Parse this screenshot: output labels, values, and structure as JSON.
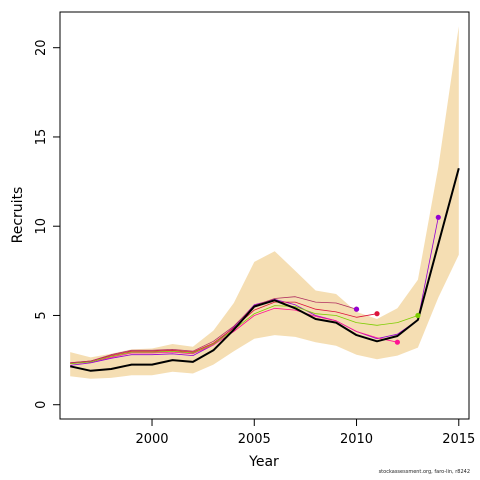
{
  "chart_data": {
    "type": "line",
    "xlabel": "Year",
    "ylabel": "Recruits",
    "xlim": [
      1995.5,
      2015.5
    ],
    "ylim": [
      -0.8,
      22
    ],
    "x_ticks": [
      2000,
      2005,
      2010,
      2015
    ],
    "y_ticks": [
      0,
      5,
      10,
      15,
      20
    ],
    "grid": false,
    "band": {
      "color": "#F5DEB3",
      "x": [
        1996,
        1997,
        1998,
        1999,
        2000,
        2001,
        2002,
        2003,
        2004,
        2005,
        2006,
        2007,
        2008,
        2009,
        2010,
        2011,
        2012,
        2013,
        2014,
        2015
      ],
      "lower": [
        1.6,
        1.45,
        1.5,
        1.65,
        1.65,
        1.85,
        1.75,
        2.25,
        3.0,
        3.7,
        3.9,
        3.8,
        3.5,
        3.3,
        2.8,
        2.55,
        2.75,
        3.2,
        6.0,
        8.4
      ],
      "upper": [
        2.95,
        2.65,
        2.85,
        3.1,
        3.15,
        3.4,
        3.25,
        4.15,
        5.7,
        8.0,
        8.6,
        7.5,
        6.4,
        6.2,
        5.2,
        4.8,
        5.4,
        7.0,
        13.3,
        21.2
      ]
    },
    "series": [
      {
        "color": "#000000",
        "width": 2,
        "x": [
          1996,
          1997,
          1998,
          1999,
          2000,
          2001,
          2002,
          2003,
          2004,
          2005,
          2006,
          2007,
          2008,
          2009,
          2010,
          2011,
          2012,
          2013,
          2014,
          2015
        ],
        "values": [
          2.15,
          1.9,
          2.0,
          2.25,
          2.25,
          2.5,
          2.4,
          3.05,
          4.2,
          5.5,
          5.85,
          5.4,
          4.8,
          4.6,
          3.9,
          3.55,
          3.85,
          4.75,
          9.0,
          13.25
        ]
      },
      {
        "color": "#9400D3",
        "width": 0.8,
        "endpoint": true,
        "x": [
          1996,
          1997,
          1998,
          1999,
          2000,
          2001,
          2002,
          2003,
          2004,
          2005,
          2006,
          2007,
          2008,
          2009,
          2010,
          2011,
          2012,
          2013,
          2014
        ],
        "values": [
          2.2,
          2.35,
          2.6,
          2.8,
          2.8,
          2.85,
          2.75,
          3.35,
          4.35,
          5.6,
          5.9,
          5.6,
          5.0,
          4.7,
          4.1,
          3.7,
          3.95,
          4.75,
          10.5
        ]
      },
      {
        "color": "#FF1493",
        "width": 0.8,
        "endpoint": true,
        "x": [
          1996,
          1997,
          1998,
          1999,
          2000,
          2001,
          2002,
          2003,
          2004,
          2005,
          2006,
          2007,
          2008,
          2009,
          2010,
          2011,
          2012
        ],
        "values": [
          2.3,
          2.4,
          2.65,
          2.9,
          2.9,
          2.95,
          2.85,
          3.35,
          4.1,
          5.0,
          5.4,
          5.3,
          4.95,
          4.7,
          4.1,
          3.75,
          3.5
        ]
      },
      {
        "color": "#7CCD00",
        "width": 0.8,
        "endpoint": true,
        "x": [
          1996,
          1997,
          1998,
          1999,
          2000,
          2001,
          2002,
          2003,
          2004,
          2005,
          2006,
          2007,
          2008,
          2009,
          2010,
          2011,
          2012,
          2013
        ],
        "values": [
          2.3,
          2.4,
          2.7,
          2.95,
          2.95,
          3.0,
          2.9,
          3.4,
          4.2,
          5.1,
          5.55,
          5.5,
          5.1,
          5.0,
          4.6,
          4.45,
          4.6,
          5.0
        ]
      },
      {
        "color": "#DC143C",
        "width": 0.8,
        "endpoint": true,
        "x": [
          1996,
          1997,
          1998,
          1999,
          2000,
          2001,
          2002,
          2003,
          2004,
          2005,
          2006,
          2007,
          2008,
          2009,
          2010,
          2011
        ],
        "values": [
          2.35,
          2.45,
          2.75,
          3.0,
          3.0,
          3.05,
          2.95,
          3.45,
          4.3,
          5.3,
          5.75,
          5.75,
          5.35,
          5.2,
          4.9,
          5.1
        ]
      },
      {
        "color": "#B03060",
        "width": 0.8,
        "endpoint": true,
        "x": [
          1996,
          1997,
          1998,
          1999,
          2000,
          2001,
          2002,
          2003,
          2004,
          2005,
          2006,
          2007,
          2008,
          2009,
          2010
        ],
        "values": [
          2.35,
          2.45,
          2.8,
          3.05,
          3.05,
          3.1,
          3.0,
          3.55,
          4.4,
          5.55,
          5.95,
          6.05,
          5.75,
          5.7,
          5.35
        ]
      },
      {
        "color": "#9400D3",
        "width": 0.8,
        "endpoint": true,
        "x": [
          2010
        ],
        "values": [
          5.35
        ]
      }
    ]
  },
  "credit": "stockassessment.org, faro-lin, r8242"
}
